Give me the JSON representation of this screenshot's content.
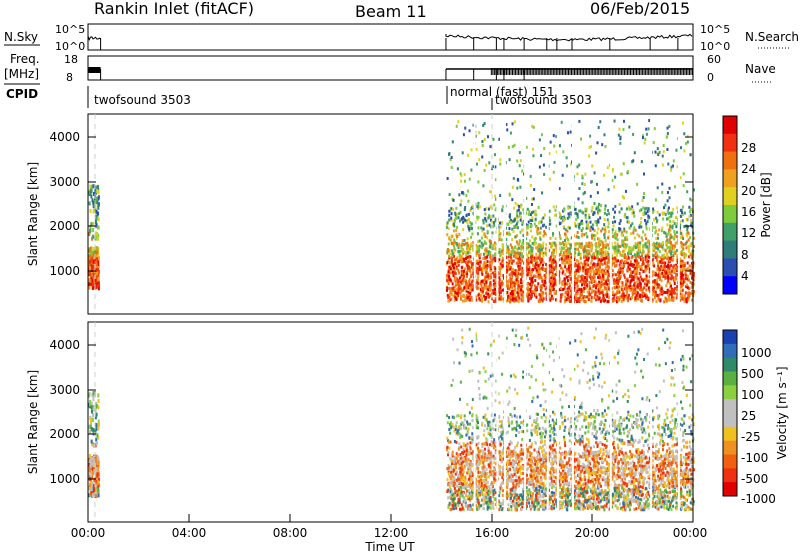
{
  "header": {
    "station": "Rankin Inlet (fitACF)",
    "beam": "Beam 11",
    "date": "06/Feb/2015"
  },
  "strips": {
    "nsky_label": "N.Sky",
    "nsky_ticks": [
      "10^5",
      "10^0"
    ],
    "nsearch_label": "N.Search",
    "nsearch_ticks": [
      "10^5",
      "10^0"
    ],
    "freq_label": "Freq.",
    "freq_unit": "[MHz]",
    "freq_ticks": [
      "18",
      "8"
    ],
    "nave_label": "Nave",
    "nave_ticks": [
      "60",
      "0"
    ],
    "cpid_label": "CPID",
    "cpid_annotations": [
      {
        "text": "twofsound 3503",
        "hour": 0.3
      },
      {
        "text": "normal (fast) 151",
        "hour": 14.2
      },
      {
        "text": "twofsound 3503",
        "hour": 16.0
      }
    ]
  },
  "chart_data": [
    {
      "type": "heatmap",
      "name": "power-panel",
      "ylabel": "Slant Range [km]",
      "xlim": [
        0,
        24
      ],
      "ylim": [
        200,
        4600
      ],
      "yticks": [
        "1000",
        "2000",
        "3000",
        "4000"
      ],
      "colorbar_label": "Power [dB]",
      "colorbar_ticks": [
        "4",
        "8",
        "12",
        "16",
        "20",
        "24",
        "28"
      ],
      "colorbar_colors": [
        "#0000ff",
        "#2a4fb0",
        "#2f7d7a",
        "#3fa068",
        "#7ccc3c",
        "#e0d020",
        "#f0a020",
        "#f07010",
        "#f03010",
        "#e00000"
      ],
      "scatter_blocks": [
        {
          "start": 0.0,
          "end": 0.4,
          "min_km": 800,
          "max_km": 3100
        },
        {
          "start": 14.2,
          "end": 24.0,
          "min_km": 500,
          "max_km": 4500
        }
      ]
    },
    {
      "type": "heatmap",
      "name": "velocity-panel",
      "ylabel": "Slant Range [km]",
      "xlabel": "Time UT",
      "xlim": [
        0,
        24
      ],
      "ylim": [
        200,
        4600
      ],
      "xticks": [
        "00:00",
        "04:00",
        "08:00",
        "12:00",
        "16:00",
        "20:00",
        "00:00"
      ],
      "yticks": [
        "1000",
        "2000",
        "3000",
        "4000"
      ],
      "colorbar_label": "Velocity [m s⁻¹]",
      "colorbar_ticks": [
        "1000",
        "500",
        "100",
        "25",
        "-25",
        "-100",
        "-500",
        "-1000"
      ],
      "colorbar_colors": [
        "#1a3fb0",
        "#2f6db8",
        "#2f8a6a",
        "#5ab040",
        "#8ad040",
        "#c0c0c0",
        "#c0c0c0",
        "#f0c020",
        "#f09020",
        "#f06010",
        "#f03010",
        "#e00000"
      ],
      "scatter_blocks": [
        {
          "start": 0.0,
          "end": 0.4,
          "min_km": 800,
          "max_km": 3100
        },
        {
          "start": 14.2,
          "end": 24.0,
          "min_km": 500,
          "max_km": 4500
        }
      ]
    }
  ]
}
